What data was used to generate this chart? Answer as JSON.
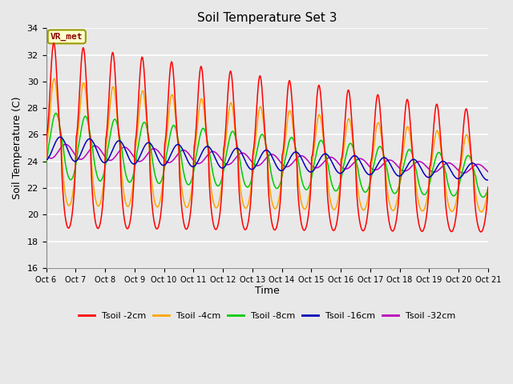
{
  "title": "Soil Temperature Set 3",
  "xlabel": "Time",
  "ylabel": "Soil Temperature (C)",
  "ylim": [
    16,
    34
  ],
  "annotation_text": "VR_met",
  "annotation_bg": "#FFFFCC",
  "annotation_border": "#999900",
  "colors": {
    "Tsoil -2cm": "#FF0000",
    "Tsoil -4cm": "#FFA500",
    "Tsoil -8cm": "#00CC00",
    "Tsoil -16cm": "#0000BB",
    "Tsoil -32cm": "#BB00BB"
  },
  "bg_color": "#E8E8E8",
  "plot_bg": "#E8E8E8",
  "grid_color": "#FFFFFF",
  "xtick_labels": [
    "Oct 6",
    "Oct 7",
    "Oct 8",
    "Oct 9",
    "Oct 10",
    "Oct 11",
    "Oct 12",
    "Oct 13",
    "Oct 14",
    "Oct 15",
    "Oct 16",
    "Oct 17",
    "Oct 18",
    "Oct 19",
    "Oct 20",
    "Oct 21"
  ],
  "ytick_values": [
    16,
    18,
    20,
    22,
    24,
    26,
    28,
    30,
    32,
    34
  ]
}
